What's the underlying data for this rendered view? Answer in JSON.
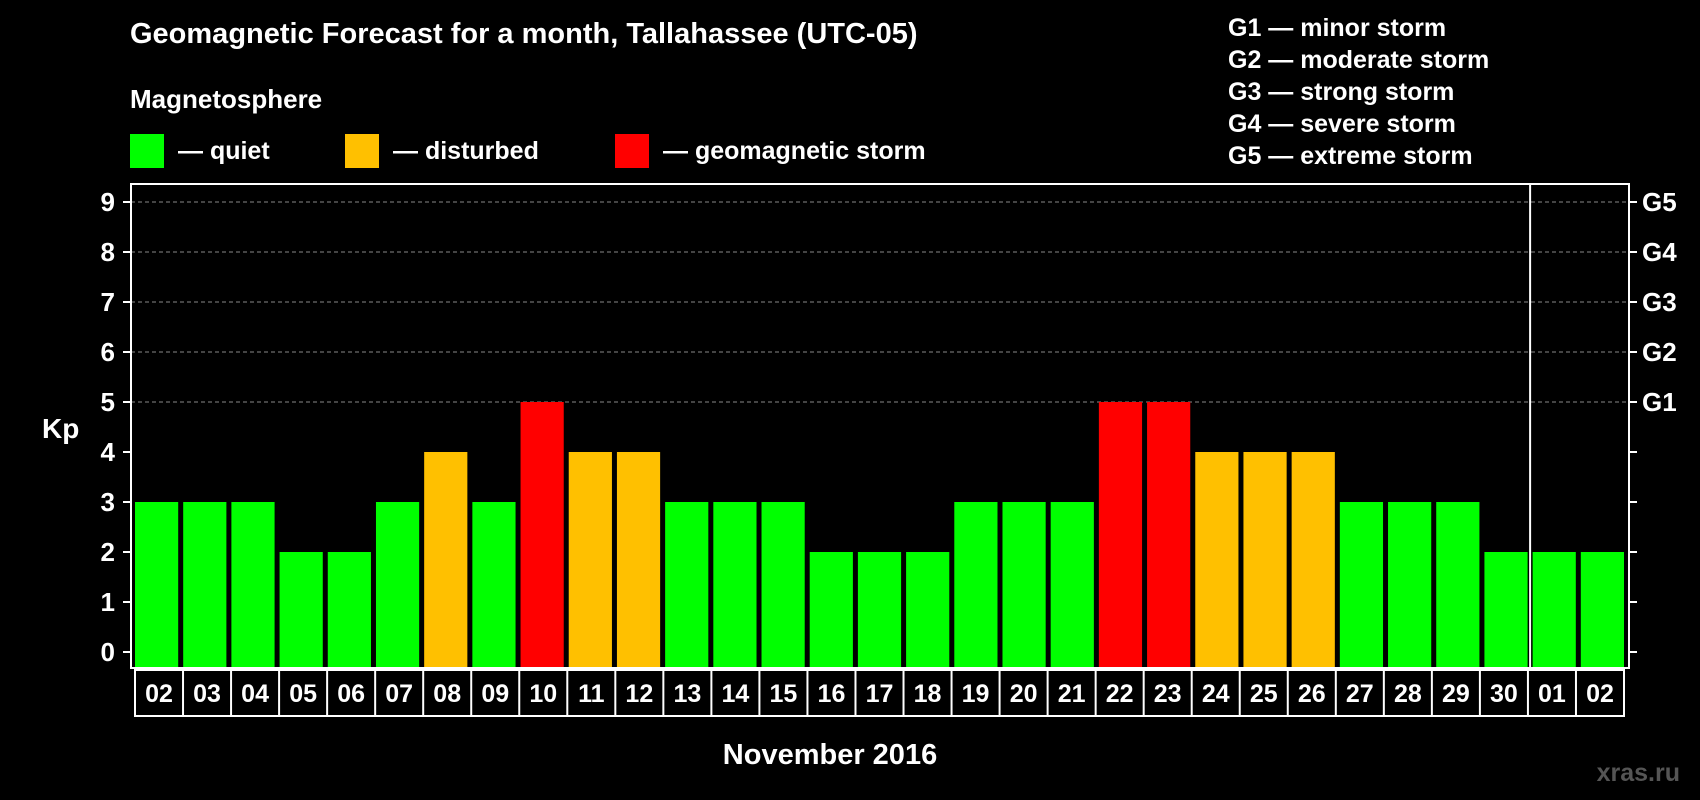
{
  "header": {
    "title": "Geomagnetic Forecast for a month, Tallahassee (UTC-05)",
    "subtitle": "Magnetosphere"
  },
  "legend": {
    "quiet": "— quiet",
    "disturbed": "— disturbed",
    "storm": "— geomagnetic storm"
  },
  "storm_levels": [
    "G1 — minor storm",
    "G2 — moderate storm",
    "G3 — strong storm",
    "G4 — severe storm",
    "G5 — extreme storm"
  ],
  "watermark": "xras.ru",
  "colors": {
    "quiet": "#00ff00",
    "disturbed": "#ffc000",
    "storm": "#ff0000",
    "grid": "#888888",
    "axis": "#ffffff"
  },
  "chart_data": {
    "type": "bar",
    "title": "Geomagnetic Forecast for a month, Tallahassee (UTC-05)",
    "xlabel": "November 2016",
    "ylabel": "Kp",
    "ylim": [
      0,
      9
    ],
    "yticks": [
      "0",
      "1",
      "2",
      "3",
      "4",
      "5",
      "6",
      "7",
      "8",
      "9"
    ],
    "right_axis_labels": [
      {
        "kp": 5,
        "label": "G1"
      },
      {
        "kp": 6,
        "label": "G2"
      },
      {
        "kp": 7,
        "label": "G3"
      },
      {
        "kp": 8,
        "label": "G4"
      },
      {
        "kp": 9,
        "label": "G5"
      }
    ],
    "categories": [
      "02",
      "03",
      "04",
      "05",
      "06",
      "07",
      "08",
      "09",
      "10",
      "11",
      "12",
      "13",
      "14",
      "15",
      "16",
      "17",
      "18",
      "19",
      "20",
      "21",
      "22",
      "23",
      "24",
      "25",
      "26",
      "27",
      "28",
      "29",
      "30",
      "01",
      "02"
    ],
    "values": [
      3,
      3,
      3,
      2,
      2,
      3,
      4,
      3,
      5,
      4,
      4,
      3,
      3,
      3,
      2,
      2,
      2,
      3,
      3,
      3,
      5,
      5,
      4,
      4,
      4,
      3,
      3,
      3,
      2,
      2,
      2
    ],
    "levels": [
      "quiet",
      "quiet",
      "quiet",
      "quiet",
      "quiet",
      "quiet",
      "disturbed",
      "quiet",
      "storm",
      "disturbed",
      "disturbed",
      "quiet",
      "quiet",
      "quiet",
      "quiet",
      "quiet",
      "quiet",
      "quiet",
      "quiet",
      "quiet",
      "storm",
      "storm",
      "disturbed",
      "disturbed",
      "disturbed",
      "quiet",
      "quiet",
      "quiet",
      "quiet",
      "quiet",
      "quiet"
    ],
    "month_divider_after": "30",
    "grid": true
  }
}
